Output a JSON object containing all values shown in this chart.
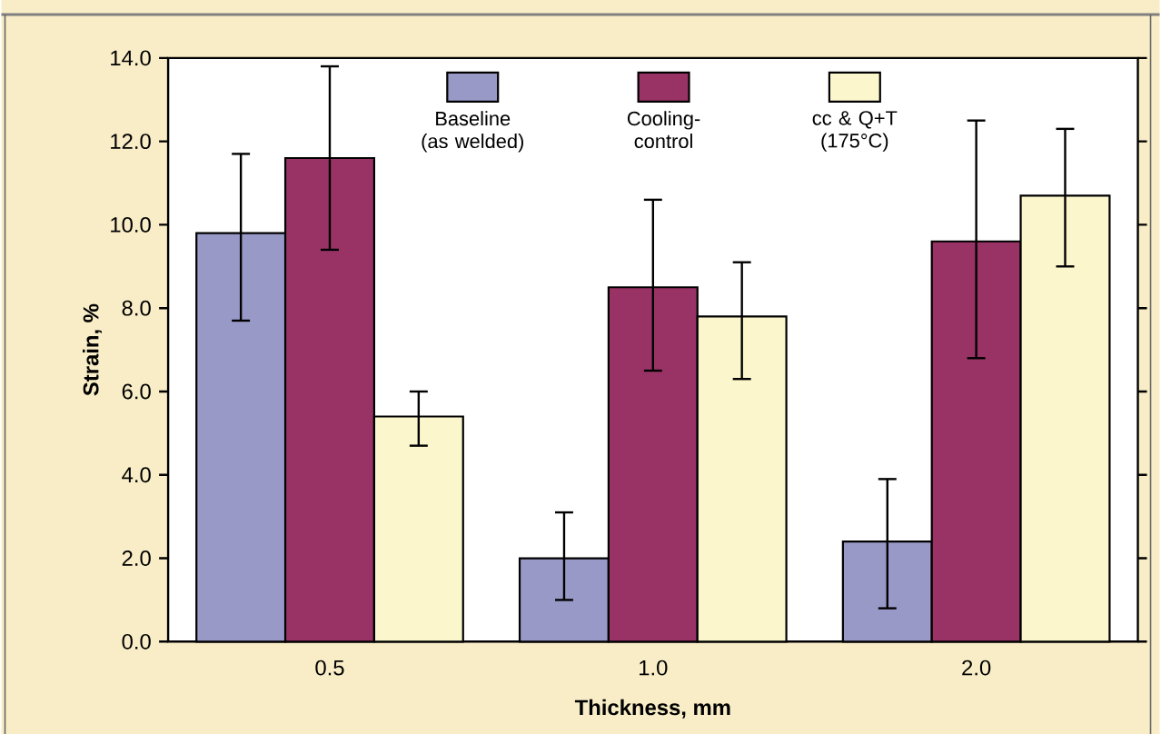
{
  "chart_data": {
    "type": "bar",
    "xlabel": "Thickness, mm",
    "ylabel": "Strain, %",
    "categories": [
      "0.5",
      "1.0",
      "2.0"
    ],
    "series": [
      {
        "name": "Baseline (as welded)",
        "color": "#9999c8",
        "values": [
          9.8,
          2.0,
          2.4
        ],
        "errors": [
          [
            7.7,
            11.7
          ],
          [
            1.0,
            3.1
          ],
          [
            0.8,
            3.9
          ]
        ]
      },
      {
        "name": "Cooling-control",
        "color": "#993366",
        "values": [
          11.6,
          8.5,
          9.6
        ],
        "errors": [
          [
            9.4,
            13.8
          ],
          [
            6.5,
            10.6
          ],
          [
            6.8,
            12.5
          ]
        ]
      },
      {
        "name": "cc & Q+T (175°C)",
        "color": "#fbf6cc",
        "values": [
          5.4,
          7.8,
          10.7
        ],
        "errors": [
          [
            4.7,
            6.0
          ],
          [
            6.3,
            9.1
          ],
          [
            9.0,
            12.3
          ]
        ]
      }
    ],
    "ylim": [
      0,
      14
    ],
    "yticks": [
      {
        "value": 0,
        "label": "0.0"
      },
      {
        "value": 2,
        "label": "2.0"
      },
      {
        "value": 4,
        "label": "4.0"
      },
      {
        "value": 6,
        "label": "6.0"
      },
      {
        "value": 8,
        "label": "8.0"
      },
      {
        "value": 10,
        "label": "10.0"
      },
      {
        "value": 12,
        "label": "12.0"
      },
      {
        "value": 14,
        "label": "14.0"
      }
    ],
    "legend": "top",
    "grid": false
  }
}
